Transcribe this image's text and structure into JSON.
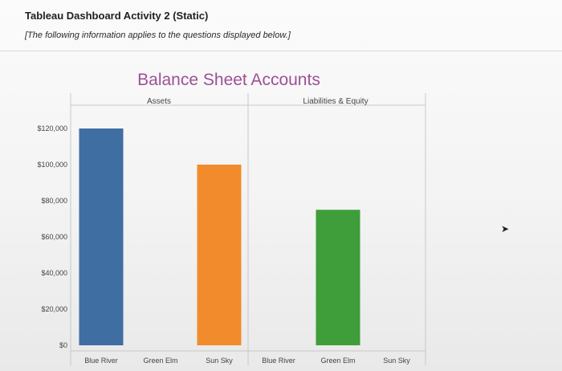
{
  "header": {
    "title": "Tableau Dashboard Activity 2 (Static)",
    "note": "[The following information applies to the questions displayed below.]"
  },
  "colors": {
    "title": "#9e4f96",
    "blue_river": "#3f6ea2",
    "green_elm": "#3f9e3a",
    "sun_sky": "#f28b2c",
    "axis": "#c8c8c8",
    "text": "#444444"
  },
  "chart_data": {
    "type": "bar",
    "title": "Balance Sheet Accounts",
    "panels": [
      "Assets",
      "Liabilities & Equity"
    ],
    "categories": [
      "Blue River",
      "Green Elm",
      "Sun Sky"
    ],
    "series": [
      {
        "panel": "Assets",
        "values": [
          120000,
          0,
          100000
        ]
      },
      {
        "panel": "Liabilities & Equity",
        "values": [
          0,
          75000,
          0
        ]
      }
    ],
    "y_ticks": [
      "$0",
      "$20,000",
      "$40,000",
      "$60,000",
      "$80,000",
      "$100,000",
      "$120,000"
    ],
    "ylim": [
      0,
      125000
    ],
    "grid": false,
    "legend": "none"
  }
}
